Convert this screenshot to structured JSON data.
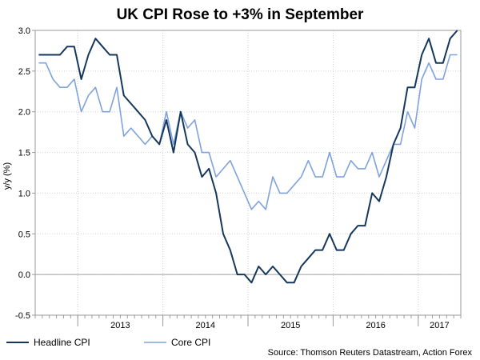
{
  "chart_data": {
    "type": "line",
    "title": "UK CPI Rose to +3% in September",
    "ylabel": "y/y (%)",
    "xlabel": "",
    "ylim": [
      -0.5,
      3.0
    ],
    "yticks": [
      "3.0",
      "2.5",
      "2.0",
      "1.5",
      "1.0",
      "0.5",
      "0.0",
      "-0.5"
    ],
    "ytick_values": [
      3.0,
      2.5,
      2.0,
      1.5,
      1.0,
      0.5,
      0.0,
      -0.5
    ],
    "x_start": "2012-07",
    "year_labels": [
      "2013",
      "2014",
      "2015",
      "2016",
      "2017"
    ],
    "grid": true,
    "legend_position": "bottom-left",
    "series": [
      {
        "name": "Headline CPI",
        "color": "#16375c",
        "values": [
          2.7,
          2.7,
          2.7,
          2.7,
          2.8,
          2.8,
          2.4,
          2.7,
          2.9,
          2.8,
          2.7,
          2.7,
          2.2,
          2.1,
          2.0,
          1.9,
          1.7,
          1.6,
          1.9,
          1.5,
          2.0,
          1.6,
          1.5,
          1.2,
          1.3,
          1.0,
          0.5,
          0.3,
          0.0,
          0.0,
          -0.1,
          0.1,
          0.0,
          0.1,
          0.0,
          -0.1,
          -0.1,
          0.1,
          0.2,
          0.3,
          0.3,
          0.5,
          0.3,
          0.3,
          0.5,
          0.6,
          0.6,
          1.0,
          0.9,
          1.2,
          1.6,
          1.8,
          2.3,
          2.3,
          2.7,
          2.9,
          2.6,
          2.6,
          2.9,
          3.0
        ]
      },
      {
        "name": "Core CPI",
        "color": "#7fa2dc",
        "values": [
          2.6,
          2.6,
          2.4,
          2.3,
          2.3,
          2.4,
          2.0,
          2.2,
          2.3,
          2.0,
          2.0,
          2.3,
          1.7,
          1.8,
          1.7,
          1.6,
          1.7,
          1.6,
          2.0,
          1.6,
          2.0,
          1.8,
          1.9,
          1.5,
          1.5,
          1.2,
          1.3,
          1.4,
          1.2,
          1.0,
          0.8,
          0.9,
          0.8,
          1.2,
          1.0,
          1.0,
          1.1,
          1.2,
          1.4,
          1.2,
          1.2,
          1.5,
          1.2,
          1.2,
          1.4,
          1.3,
          1.3,
          1.5,
          1.2,
          1.4,
          1.6,
          1.6,
          2.0,
          1.8,
          2.4,
          2.6,
          2.4,
          2.4,
          2.7,
          2.7
        ]
      }
    ]
  },
  "source": "Source: Thomson Reuters Datastream, Action Forex"
}
